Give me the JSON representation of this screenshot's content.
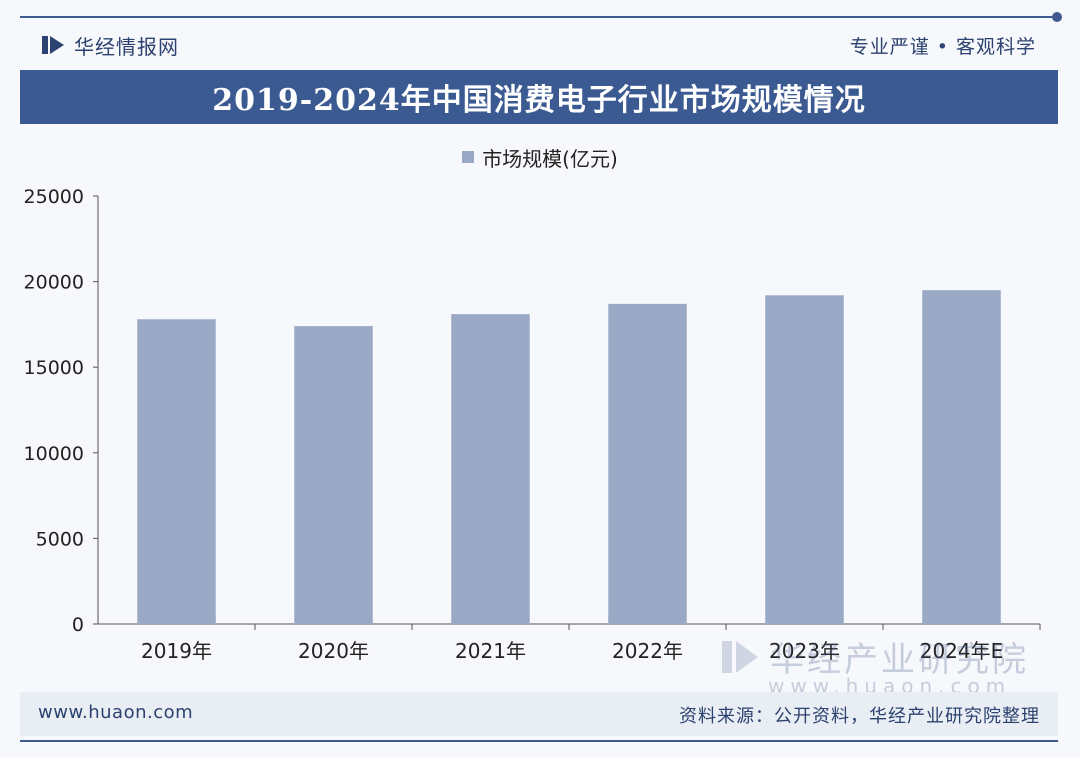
{
  "header": {
    "brand_name": "华经情报网",
    "slogan": "专业严谨 • 客观科学"
  },
  "title": "2019-2024年中国消费电子行业市场规模情况",
  "colors": {
    "accent": "#3b5a92",
    "bar": "#9aa9c6",
    "footer_bg": "#e9edf4"
  },
  "chart_data": {
    "type": "bar",
    "title": "2019-2024年中国消费电子行业市场规模情况",
    "categories": [
      "2019年",
      "2020年",
      "2021年",
      "2022年",
      "2023年",
      "2024年E"
    ],
    "series": [
      {
        "name": "市场规模(亿元)",
        "values": [
          17800,
          17400,
          18100,
          18700,
          19200,
          19500
        ]
      }
    ],
    "y_ticks": [
      "0",
      "5000",
      "10000",
      "15000",
      "20000",
      "25000"
    ],
    "ylim": [
      0,
      25000
    ],
    "grid": false,
    "legend_position": "top-center"
  },
  "watermark": {
    "text_cn": "华经产业研究院",
    "text_en": "www.huaon.com"
  },
  "footer": {
    "url": "www.huaon.com",
    "source": "资料来源：公开资料，华经产业研究院整理"
  }
}
